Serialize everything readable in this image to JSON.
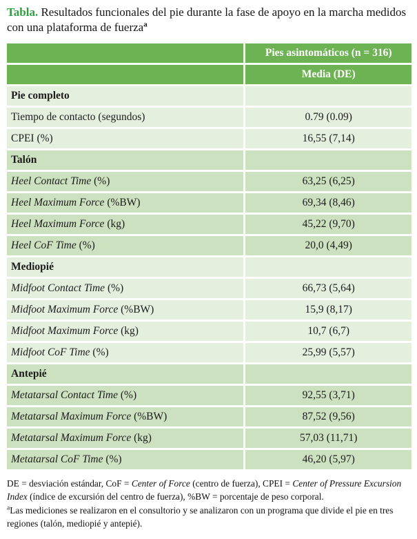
{
  "colors": {
    "title_green": "#2f9e3e",
    "header_green": "#6db253",
    "row_light": "#e4efde",
    "row_dark": "#cce1bf",
    "header_text": "#ffffff"
  },
  "title": {
    "label": "Tabla.",
    "text": " Resultados funcionales del pie durante la fase de apoyo en la marcha medidos con una plataforma de fuerza",
    "footnote_marker": "a"
  },
  "table": {
    "group_header": "Pies asintomáticos (n = 316)",
    "stat_header": "Media (DE)",
    "sections": [
      {
        "name": "Pie completo",
        "rows": [
          {
            "italic_part": "",
            "rest": "Tiempo de contacto (segundos)",
            "value": "0.79 (0.09)"
          },
          {
            "italic_part": "",
            "rest": "CPEI (%)",
            "value": "16,55 (7,14)"
          }
        ]
      },
      {
        "name": "Talón",
        "rows": [
          {
            "italic_part": "Heel Contact Time",
            "rest": " (%)",
            "value": "63,25 (6,25)"
          },
          {
            "italic_part": "Heel Maximum Force",
            "rest": " (%BW)",
            "value": "69,34 (8,46)"
          },
          {
            "italic_part": "Heel Maximum Force",
            "rest": " (kg)",
            "value": "45,22 (9,70)"
          },
          {
            "italic_part": "Heel CoF Time",
            "rest": " (%)",
            "value": "20,0 (4,49)"
          }
        ]
      },
      {
        "name": "Mediopié",
        "rows": [
          {
            "italic_part": "Midfoot Contact Time",
            "rest": " (%)",
            "value": "66,73 (5,64)"
          },
          {
            "italic_part": "Midfoot Maximum Force",
            "rest": " (%BW)",
            "value": "15,9 (8,17)"
          },
          {
            "italic_part": "Midfoot Maximum Force",
            "rest": " (kg)",
            "value": "10,7 (6,7)"
          },
          {
            "italic_part": "Midfoot CoF Time",
            "rest": " (%)",
            "value": "25,99 (5,57)"
          }
        ]
      },
      {
        "name": "Antepié",
        "rows": [
          {
            "italic_part": "Metatarsal Contact Time",
            "rest": " (%)",
            "value": "92,55 (3,71)"
          },
          {
            "italic_part": "Metatarsal Maximum Force",
            "rest": " (%BW)",
            "value": "87,52 (9,56)"
          },
          {
            "italic_part": "Metatarsal Maximum Force",
            "rest": " (kg)",
            "value": "57,03 (11,71)"
          },
          {
            "italic_part": "Metatarsal CoF Time",
            "rest": " (%)",
            "value": "46,20 (5,97)"
          }
        ]
      }
    ]
  },
  "footnotes": [
    {
      "marker": "",
      "segments": [
        {
          "text": "DE = desviación estándar, CoF = ",
          "italic": false
        },
        {
          "text": "Center of Force",
          "italic": true
        },
        {
          "text": " (centro de fuerza), CPEI = ",
          "italic": false
        },
        {
          "text": "Center of Pressure Excursion Index",
          "italic": true
        },
        {
          "text": " (índice de excursión del centro de fuerza), %BW = porcentaje de peso corporal.",
          "italic": false
        }
      ]
    },
    {
      "marker": "a",
      "segments": [
        {
          "text": "Las mediciones se realizaron en el consultorio y se analizaron con un programa que divide el pie en tres regiones (talón, mediopié y antepié).",
          "italic": false
        }
      ]
    }
  ]
}
